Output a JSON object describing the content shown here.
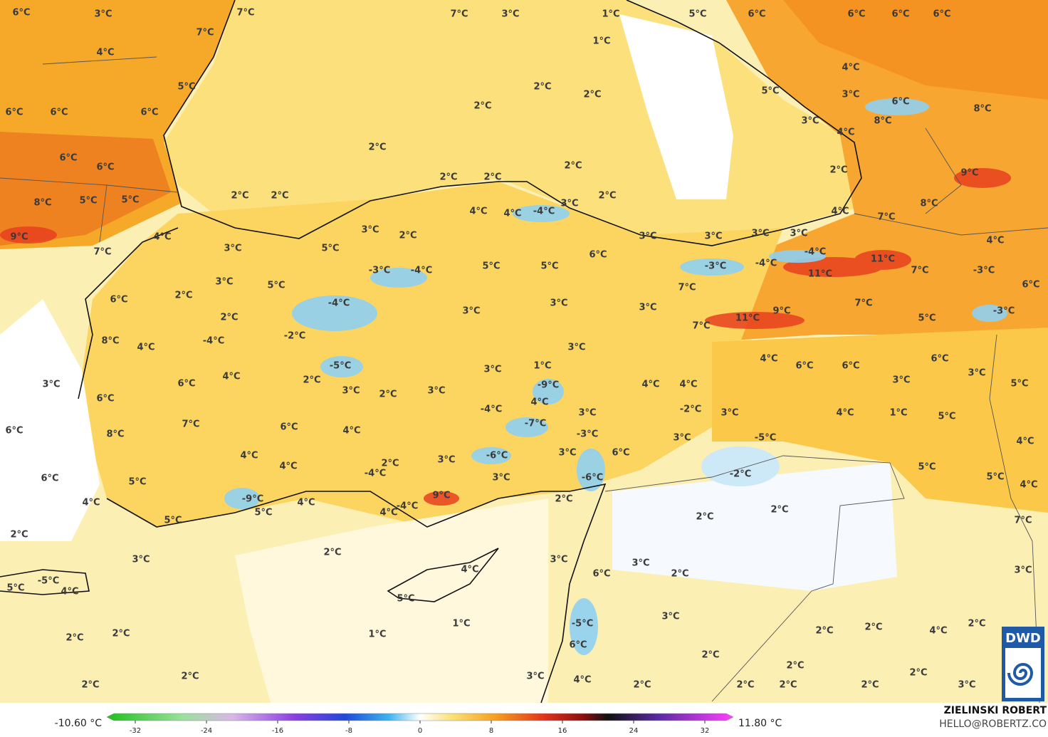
{
  "map": {
    "labels": [
      "6°C",
      "3°C",
      "7°C",
      "7°C",
      "3°C",
      "1°C",
      "5°C",
      "6°C",
      "6°C",
      "6°C",
      "6°C",
      "7°C",
      "4°C",
      "1°C",
      "4°C",
      "5°C",
      "2°C",
      "2°C",
      "5°C",
      "3°C",
      "6°C",
      "8°C",
      "6°C",
      "6°C",
      "6°C",
      "2°C",
      "3°C",
      "8°C",
      "4°C",
      "2°C",
      "6°C",
      "6°C",
      "2°C",
      "2°C",
      "9°C",
      "2°C",
      "2°C",
      "2°C",
      "2°C",
      "2°C",
      "8°C",
      "5°C",
      "5°C",
      "8°C",
      "4°C",
      "4°C",
      "-4°C",
      "3°C",
      "4°C",
      "7°C",
      "3°C",
      "2°C",
      "3°C",
      "3°C",
      "3°C",
      "3°C",
      "4°C",
      "9°C",
      "4°C",
      "3°C",
      "5°C",
      "7°C",
      "6°C",
      "-4°C",
      "11°C",
      "-3°C",
      "-4°C",
      "5°C",
      "5°C",
      "-3°C",
      "-4°C",
      "7°C",
      "11°C",
      "-3°C",
      "3°C",
      "5°C",
      "7°C",
      "6°C",
      "2°C",
      "6°C",
      "-4°C",
      "3°C",
      "3°C",
      "7°C",
      "2°C",
      "3°C",
      "11°C",
      "9°C",
      "-3°C",
      "5°C",
      "-2°C",
      "7°C",
      "8°C",
      "-4°C",
      "4°C",
      "3°C",
      "-5°C",
      "3°C",
      "1°C",
      "4°C",
      "6°C",
      "6°C",
      "6°C",
      "3°C",
      "4°C",
      "2°C",
      "-9°C",
      "4°C",
      "4°C",
      "3°C",
      "5°C",
      "3°C",
      "6°C",
      "3°C",
      "2°C",
      "3°C",
      "6°C",
      "4°C",
      "-4°C",
      "-2°C",
      "3°C",
      "3°C",
      "4°C",
      "1°C",
      "5°C",
      "6°C",
      "7°C",
      "6°C",
      "4°C",
      "-7°C",
      "-3°C",
      "3°C",
      "-5°C",
      "8°C",
      "4°C",
      "4°C",
      "3°C",
      "-6°C",
      "3°C",
      "6°C",
      "4°C",
      "2°C",
      "-4°C",
      "5°C",
      "-2°C",
      "3°C",
      "-6°C",
      "5°C",
      "6°C",
      "5°C",
      "4°C",
      "9°C",
      "-9°C",
      "4°C",
      "2°C",
      "4°C",
      "5°C",
      "-4°C",
      "4°C",
      "2°C",
      "5°C",
      "2°C",
      "7°C",
      "2°C",
      "2°C",
      "3°C",
      "3°C",
      "3°C",
      "6°C",
      "2°C",
      "4°C",
      "3°C",
      "5°C",
      "-5°C",
      "4°C",
      "5°C",
      "3°C",
      "-5°C",
      "1°C",
      "2°C",
      "2°C",
      "2°C",
      "4°C",
      "1°C",
      "2°C",
      "2°C",
      "6°C",
      "2°C",
      "2°C",
      "2°C",
      "2°C",
      "3°C",
      "4°C",
      "2°C",
      "2°C",
      "2°C",
      "2°C",
      "2°C",
      "3°C"
    ],
    "colorbar": {
      "min_label": "-10.60 °C",
      "max_label": "11.80 °C",
      "ticks": [
        -32,
        -24,
        -16,
        -8,
        0,
        8,
        16,
        24,
        32
      ]
    },
    "credit": {
      "author": "ZIELINSKI ROBERT",
      "contact": "HELLO@ROBERTZ.CO",
      "logo": "DWD"
    }
  }
}
